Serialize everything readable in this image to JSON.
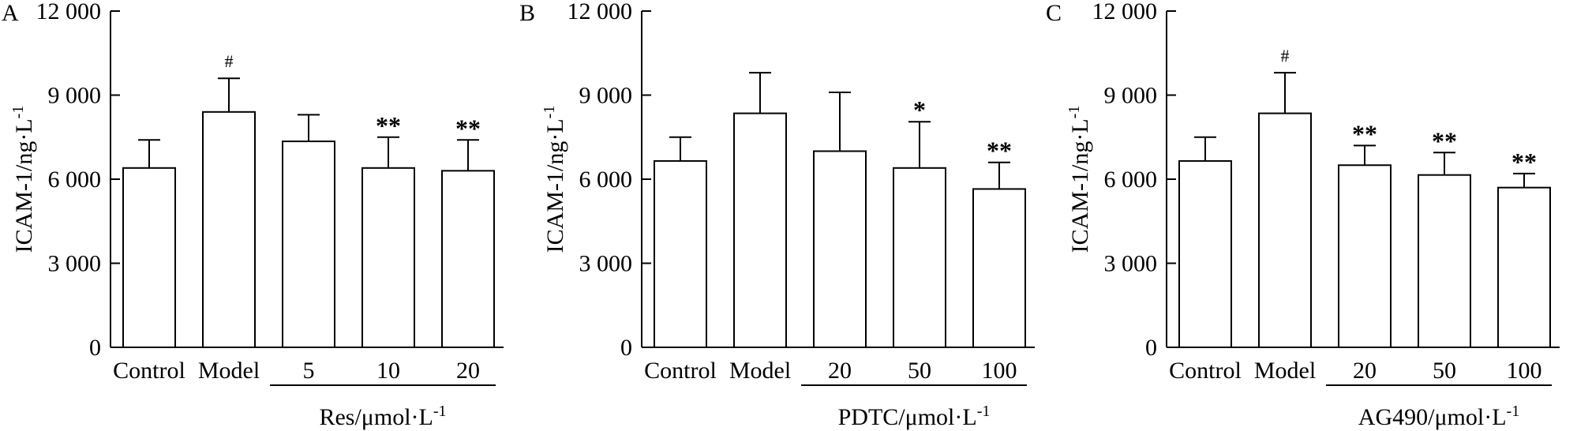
{
  "chart_data": [
    {
      "type": "bar",
      "panel": "A",
      "ylabel_main": "ICAM-1/ng·L",
      "ylabel_sup": "-1",
      "ylim": [
        0,
        12000
      ],
      "yticks": [
        0,
        3000,
        6000,
        9000,
        12000
      ],
      "ytick_labels": [
        "0",
        "3 000",
        "6 000",
        "9 000",
        "12 000"
      ],
      "categories": [
        "Control",
        "Model",
        "5",
        "10",
        "20"
      ],
      "values": [
        6400,
        8400,
        7350,
        6400,
        6300
      ],
      "errors": [
        1000,
        1200,
        950,
        1100,
        1100
      ],
      "annotations": [
        "",
        "#",
        "",
        "**",
        "**"
      ],
      "group_label_main": "Res/μmol·L",
      "group_label_sup": "-1",
      "group_start": 2
    },
    {
      "type": "bar",
      "panel": "B",
      "ylabel_main": "ICAM-1/ng·L",
      "ylabel_sup": "-1",
      "ylim": [
        0,
        12000
      ],
      "yticks": [
        0,
        3000,
        6000,
        9000,
        12000
      ],
      "ytick_labels": [
        "0",
        "3 000",
        "6 000",
        "9 000",
        "12 000"
      ],
      "categories": [
        "Control",
        "Model",
        "20",
        "50",
        "100"
      ],
      "values": [
        6650,
        8350,
        7000,
        6400,
        5650
      ],
      "errors": [
        850,
        1450,
        2100,
        1650,
        950
      ],
      "annotations": [
        "",
        "",
        "",
        "*",
        "**"
      ],
      "group_label_main": "PDTC/μmol·L",
      "group_label_sup": "-1",
      "group_start": 2
    },
    {
      "type": "bar",
      "panel": "C",
      "ylabel_main": "ICAM-1/ng·L",
      "ylabel_sup": "-1",
      "ylim": [
        0,
        12000
      ],
      "yticks": [
        0,
        3000,
        6000,
        9000,
        12000
      ],
      "ytick_labels": [
        "0",
        "3 000",
        "6 000",
        "9 000",
        "12 000"
      ],
      "categories": [
        "Control",
        "Model",
        "20",
        "50",
        "100"
      ],
      "values": [
        6650,
        8350,
        6500,
        6150,
        5700
      ],
      "errors": [
        850,
        1450,
        700,
        800,
        500
      ],
      "annotations": [
        "",
        "#",
        "**",
        "**",
        "**"
      ],
      "group_label_main": "AG490/μmol·L",
      "group_label_sup": "-1",
      "group_start": 2
    }
  ]
}
